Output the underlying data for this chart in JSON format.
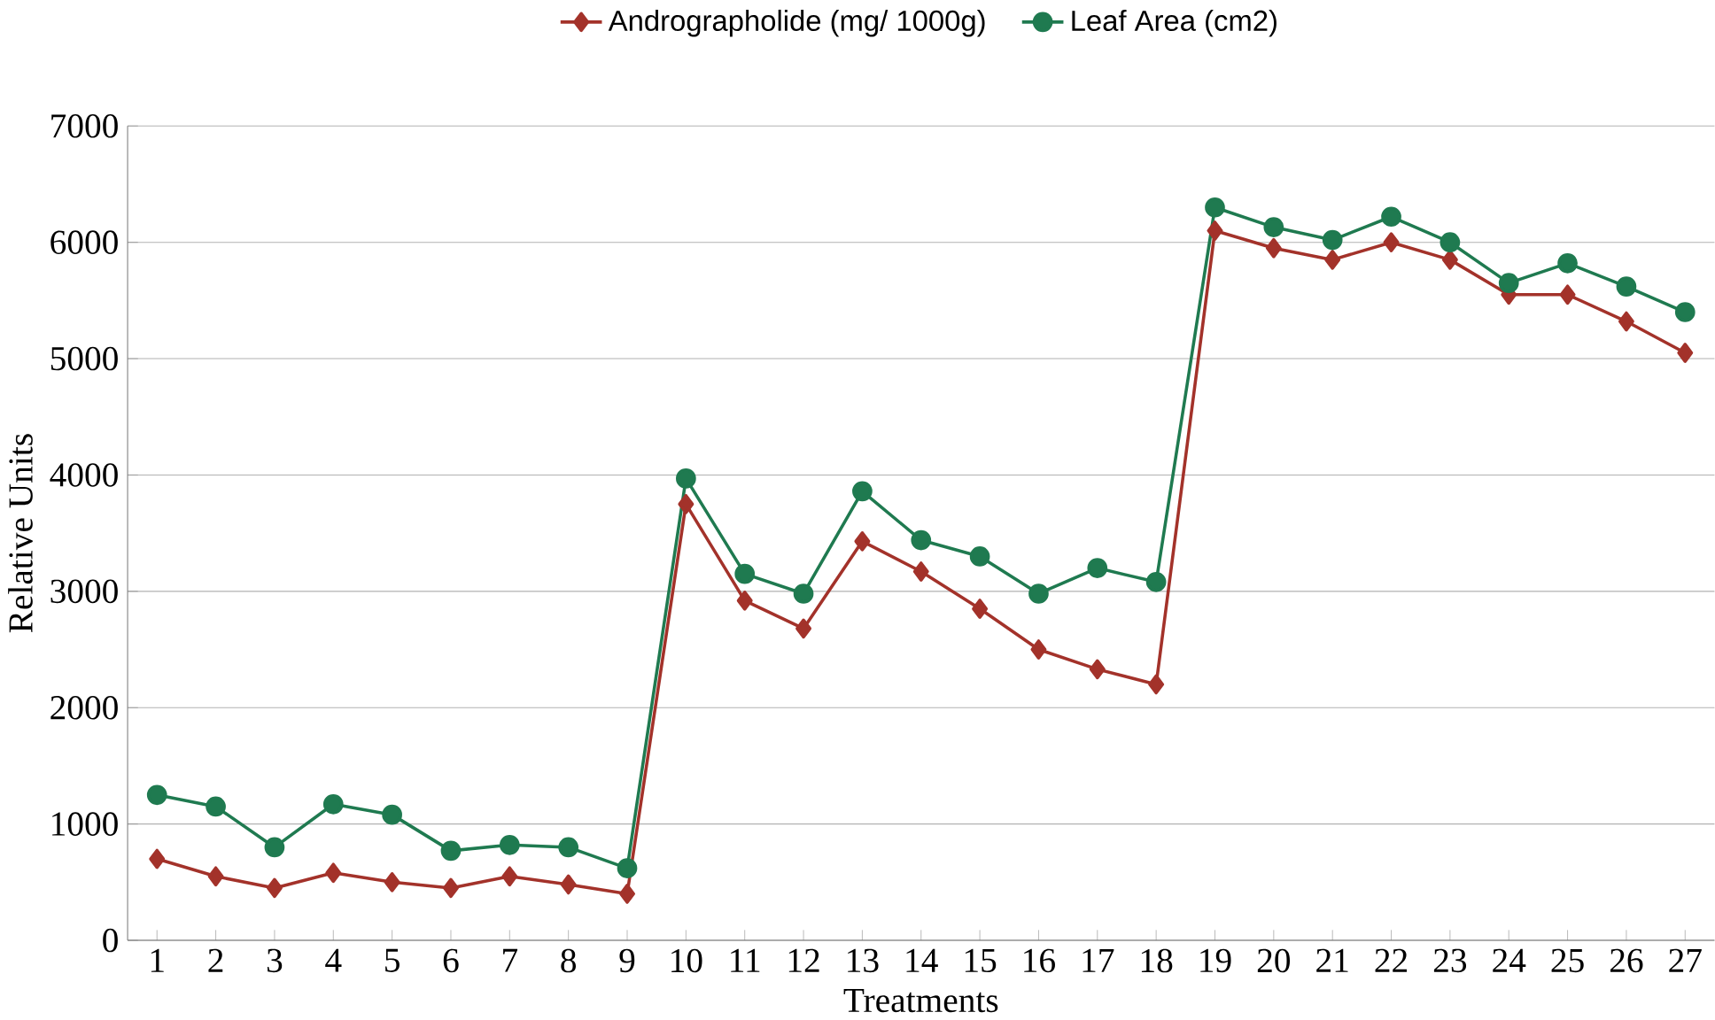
{
  "chart_data": {
    "type": "line",
    "xlabel": "Treatments",
    "ylabel": "Relative Units",
    "categories": [
      "1",
      "2",
      "3",
      "4",
      "5",
      "6",
      "7",
      "8",
      "9",
      "10",
      "11",
      "12",
      "13",
      "14",
      "15",
      "16",
      "17",
      "18",
      "19",
      "20",
      "21",
      "22",
      "23",
      "24",
      "25",
      "26",
      "27"
    ],
    "series": [
      {
        "name": "Andrographolide (mg/ 1000g)",
        "color": "#a3322a",
        "marker": "diamond",
        "values": [
          700,
          550,
          450,
          580,
          500,
          450,
          550,
          480,
          400,
          3750,
          2920,
          2680,
          3430,
          3170,
          2850,
          2500,
          2330,
          2200,
          6100,
          5950,
          5850,
          6000,
          5850,
          5550,
          5550,
          5320,
          5050
        ]
      },
      {
        "name": "Leaf Area (cm2)",
        "color": "#1f7a50",
        "marker": "circle",
        "values": [
          1250,
          1150,
          800,
          1170,
          1080,
          770,
          820,
          800,
          620,
          3970,
          3150,
          2980,
          3860,
          3440,
          3300,
          2980,
          3200,
          3080,
          6300,
          6130,
          6020,
          6220,
          6000,
          5650,
          5820,
          5620,
          5400
        ]
      }
    ],
    "ylim": [
      0,
      7000
    ],
    "yticks": [
      0,
      1000,
      2000,
      3000,
      4000,
      5000,
      6000,
      7000
    ],
    "grid": "y",
    "legend": "top",
    "line_style": "solid"
  }
}
